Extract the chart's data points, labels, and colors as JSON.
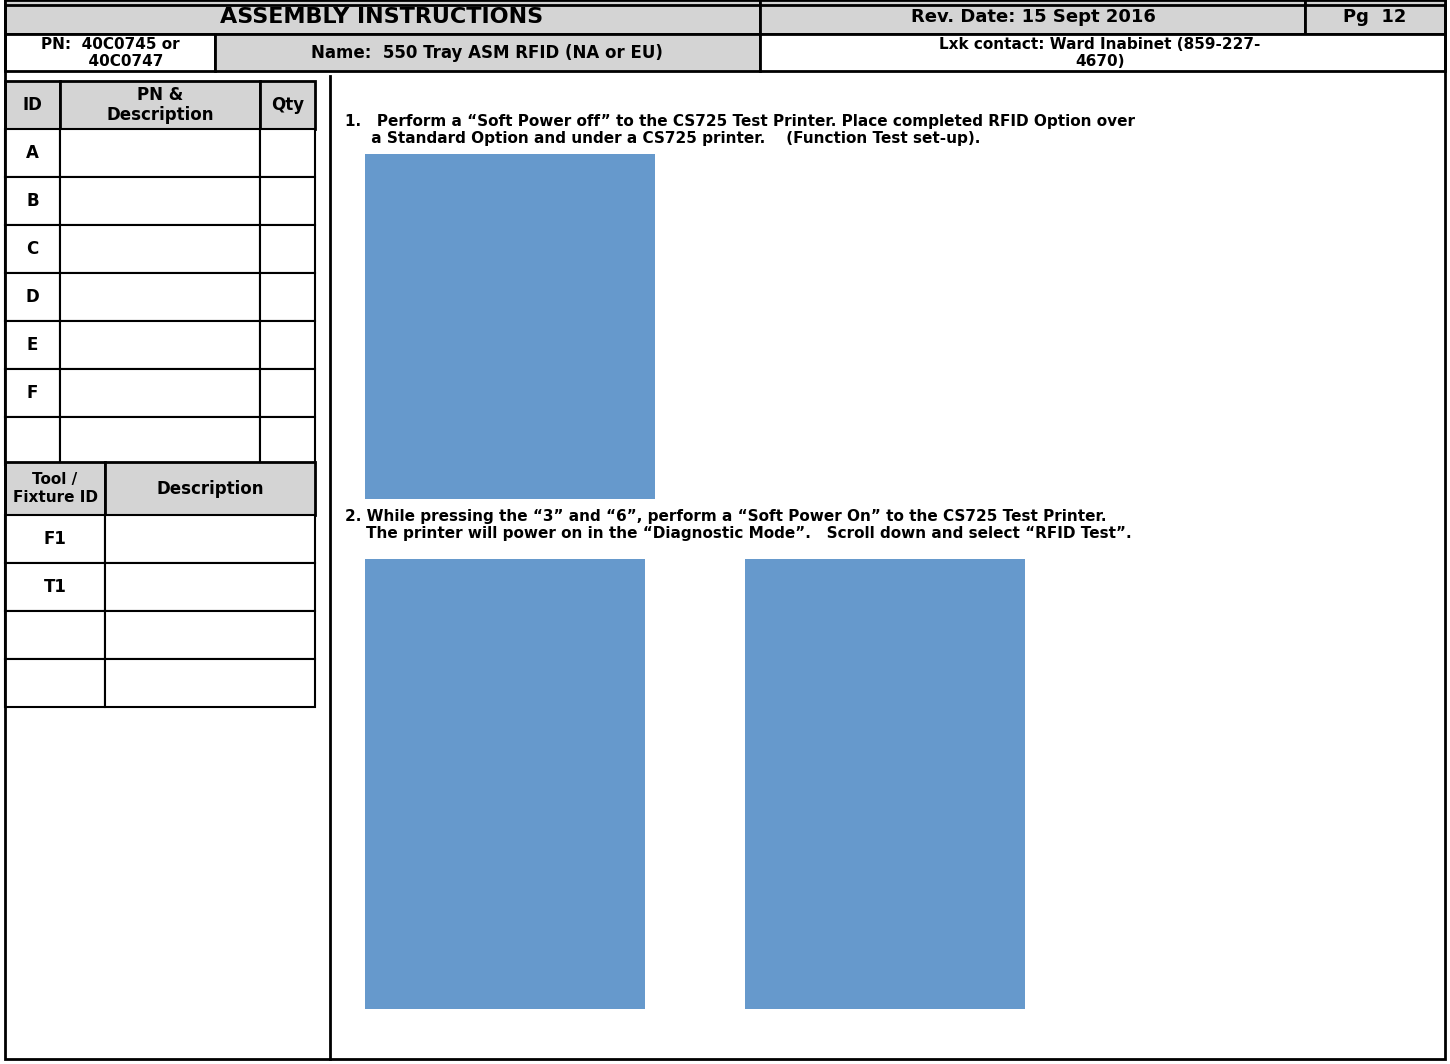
{
  "title": "ASSEMBLY INSTRUCTIONS",
  "rev_date": "Rev. Date: 15 Sept 2016",
  "pg": "Pg  12",
  "pn_label": "PN:  40C0745 or\n      40C0747",
  "name_label": "Name:  550 Tray ASM RFID (NA or EU)",
  "contact_label": "Lxk contact: Ward Inabinet (859-227-\n4670)",
  "bg_color": "#d4d4d4",
  "white": "#ffffff",
  "black": "#000000",
  "blue_rect": "#6699cc",
  "text1": "1.   Perform a “Soft Power off” to the CS725 Test Printer. Place completed RFID Option over\n     a Standard Option and under a CS725 printer.    (Function Test set-up).",
  "text2": "2. While pressing the “3” and “6”, perform a “Soft Power On” to the CS725 Test Printer.\n    The printer will power on in the “Diagnostic Mode”.   Scroll down and select “RFID Test”.",
  "id_rows": [
    "ID",
    "A",
    "B",
    "C",
    "D",
    "E",
    "F",
    ""
  ],
  "pn_col_header": "PN &\nDescription",
  "qty_header": "Qty",
  "tool_rows": [
    "Tool /\nFixture ID",
    "F1",
    "T1",
    "",
    ""
  ],
  "desc_header": "Description"
}
